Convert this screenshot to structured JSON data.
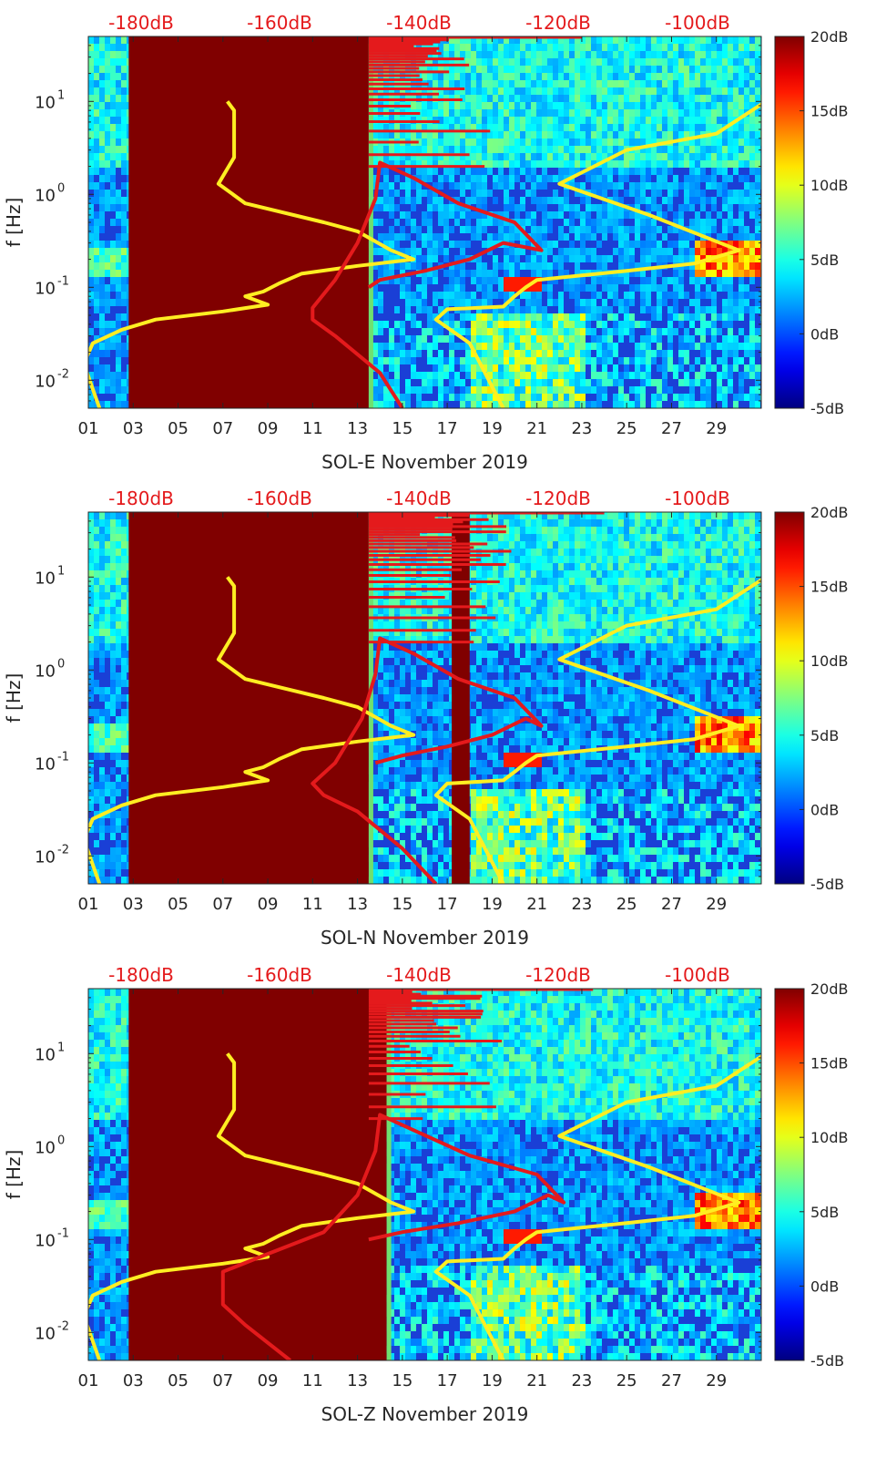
{
  "chart_data": [
    {
      "type": "heatmap",
      "xlabel": "SOL-E November 2019",
      "ylabel": "f [Hz]",
      "x_ticks": [
        "01",
        "03",
        "05",
        "07",
        "09",
        "11",
        "13",
        "15",
        "17",
        "19",
        "21",
        "23",
        "25",
        "27",
        "29"
      ],
      "x_range_days": [
        1,
        31
      ],
      "y_scale": "log",
      "y_ticks": [
        {
          "base": "10",
          "exp": "-2",
          "value": 0.01
        },
        {
          "base": "10",
          "exp": "-1",
          "value": 0.1
        },
        {
          "base": "10",
          "exp": "0",
          "value": 1
        },
        {
          "base": "10",
          "exp": "1",
          "value": 10
        }
      ],
      "y_range": [
        0.005,
        50
      ],
      "top_axis_labels": [
        "-180dB",
        "-160dB",
        "-140dB",
        "-120dB",
        "-100dB"
      ],
      "colorbar": {
        "ticks": [
          "-5dB",
          "0dB",
          "5dB",
          "10dB",
          "15dB",
          "20dB"
        ],
        "range": [
          -5,
          20
        ],
        "colormap": "jet"
      },
      "data_gap_days": [
        [
          2.8,
          13.5
        ]
      ],
      "series": [
        {
          "color": "#ffee22",
          "points": [
            [
              7.2,
              10
            ],
            [
              7.5,
              8
            ],
            [
              7.5,
              2.5
            ],
            [
              6.8,
              1.3
            ],
            [
              8.0,
              0.8
            ],
            [
              11.5,
              0.5
            ],
            [
              13.0,
              0.4
            ],
            [
              14.5,
              0.25
            ],
            [
              15.5,
              0.2
            ],
            [
              13.0,
              0.17
            ],
            [
              10.5,
              0.14
            ],
            [
              9.5,
              0.11
            ],
            [
              8.8,
              0.09
            ],
            [
              8.0,
              0.08
            ],
            [
              9.0,
              0.065
            ],
            [
              7.0,
              0.055
            ],
            [
              4.0,
              0.045
            ],
            [
              2.5,
              0.035
            ],
            [
              1.2,
              0.025
            ],
            [
              0.8,
              0.015
            ],
            [
              1.5,
              0.005
            ]
          ]
        },
        {
          "color": "#ffee22",
          "points": [
            [
              31.2,
              10
            ],
            [
              29.0,
              4.5
            ],
            [
              25.0,
              3.0
            ],
            [
              22.0,
              1.3
            ],
            [
              26.0,
              0.6
            ],
            [
              30.0,
              0.25
            ],
            [
              28.0,
              0.18
            ],
            [
              25.0,
              0.15
            ],
            [
              21.0,
              0.12
            ],
            [
              20.5,
              0.1
            ],
            [
              20.0,
              0.08
            ],
            [
              19.5,
              0.062
            ],
            [
              17.0,
              0.058
            ],
            [
              16.5,
              0.045
            ],
            [
              18.0,
              0.025
            ],
            [
              19.5,
              0.005
            ]
          ]
        },
        {
          "color": "#e41a1c",
          "points": [
            [
              13.5,
              0.1
            ],
            [
              14.0,
              0.12
            ],
            [
              16.0,
              0.15
            ],
            [
              18.0,
              0.2
            ],
            [
              19.5,
              0.3
            ],
            [
              21.2,
              0.25
            ],
            [
              20.0,
              0.5
            ],
            [
              17.5,
              0.8
            ],
            [
              15.5,
              1.5
            ],
            [
              14.0,
              2.2
            ],
            [
              13.8,
              0.9
            ],
            [
              13.0,
              0.3
            ],
            [
              12.0,
              0.12
            ],
            [
              11.0,
              0.06
            ],
            [
              11.0,
              0.045
            ],
            [
              12.0,
              0.03
            ],
            [
              14.0,
              0.012
            ],
            [
              15.0,
              0.005
            ]
          ]
        }
      ],
      "spikes": [
        {
          "days": 13.5,
          "upto": 19.0
        }
      ]
    },
    {
      "type": "heatmap",
      "xlabel": "SOL-N November 2019",
      "ylabel": "f [Hz]",
      "x_ticks": [
        "01",
        "03",
        "05",
        "07",
        "09",
        "11",
        "13",
        "15",
        "17",
        "19",
        "21",
        "23",
        "25",
        "27",
        "29"
      ],
      "x_range_days": [
        1,
        31
      ],
      "y_scale": "log",
      "y_ticks": [
        {
          "base": "10",
          "exp": "-2",
          "value": 0.01
        },
        {
          "base": "10",
          "exp": "-1",
          "value": 0.1
        },
        {
          "base": "10",
          "exp": "0",
          "value": 1
        },
        {
          "base": "10",
          "exp": "1",
          "value": 10
        }
      ],
      "y_range": [
        0.005,
        50
      ],
      "top_axis_labels": [
        "-180dB",
        "-160dB",
        "-140dB",
        "-120dB",
        "-100dB"
      ],
      "colorbar": {
        "ticks": [
          "-5dB",
          "0dB",
          "5dB",
          "10dB",
          "15dB",
          "20dB"
        ],
        "range": [
          -5,
          20
        ],
        "colormap": "jet"
      },
      "data_gap_days": [
        [
          2.8,
          13.5
        ],
        [
          17.2,
          18.0
        ]
      ],
      "series": [
        {
          "color": "#ffee22",
          "points": [
            [
              7.2,
              10
            ],
            [
              7.5,
              8
            ],
            [
              7.5,
              2.5
            ],
            [
              6.8,
              1.3
            ],
            [
              8.0,
              0.8
            ],
            [
              11.5,
              0.5
            ],
            [
              13.0,
              0.4
            ],
            [
              14.5,
              0.25
            ],
            [
              15.5,
              0.2
            ],
            [
              13.0,
              0.17
            ],
            [
              10.5,
              0.14
            ],
            [
              9.5,
              0.11
            ],
            [
              8.8,
              0.09
            ],
            [
              8.0,
              0.08
            ],
            [
              9.0,
              0.065
            ],
            [
              7.0,
              0.055
            ],
            [
              4.0,
              0.045
            ],
            [
              2.5,
              0.035
            ],
            [
              1.2,
              0.025
            ],
            [
              0.8,
              0.015
            ],
            [
              1.5,
              0.005
            ]
          ]
        },
        {
          "color": "#ffee22",
          "points": [
            [
              31.2,
              10
            ],
            [
              29.0,
              4.5
            ],
            [
              25.0,
              3.0
            ],
            [
              22.0,
              1.3
            ],
            [
              26.0,
              0.6
            ],
            [
              30.0,
              0.25
            ],
            [
              28.0,
              0.18
            ],
            [
              25.0,
              0.15
            ],
            [
              21.0,
              0.12
            ],
            [
              20.5,
              0.1
            ],
            [
              20.0,
              0.08
            ],
            [
              19.5,
              0.065
            ],
            [
              17.0,
              0.06
            ],
            [
              16.5,
              0.045
            ],
            [
              18.0,
              0.025
            ],
            [
              19.5,
              0.005
            ]
          ]
        },
        {
          "color": "#e41a1c",
          "points": [
            [
              13.8,
              0.1
            ],
            [
              15.0,
              0.12
            ],
            [
              17.0,
              0.15
            ],
            [
              19.0,
              0.2
            ],
            [
              20.5,
              0.3
            ],
            [
              21.2,
              0.25
            ],
            [
              20.0,
              0.5
            ],
            [
              17.5,
              0.8
            ],
            [
              15.5,
              1.5
            ],
            [
              14.0,
              2.2
            ],
            [
              13.8,
              0.9
            ],
            [
              13.2,
              0.3
            ],
            [
              12.0,
              0.1
            ],
            [
              11.0,
              0.06
            ],
            [
              11.5,
              0.045
            ],
            [
              13.0,
              0.03
            ],
            [
              15.0,
              0.012
            ],
            [
              16.5,
              0.005
            ]
          ]
        }
      ],
      "spikes": [
        {
          "days": 13.5,
          "upto": 20.0
        }
      ]
    },
    {
      "type": "heatmap",
      "xlabel": "SOL-Z November 2019",
      "ylabel": "f [Hz]",
      "x_ticks": [
        "01",
        "03",
        "05",
        "07",
        "09",
        "11",
        "13",
        "15",
        "17",
        "19",
        "21",
        "23",
        "25",
        "27",
        "29"
      ],
      "x_range_days": [
        1,
        31
      ],
      "y_scale": "log",
      "y_ticks": [
        {
          "base": "10",
          "exp": "-2",
          "value": 0.01
        },
        {
          "base": "10",
          "exp": "-1",
          "value": 0.1
        },
        {
          "base": "10",
          "exp": "0",
          "value": 1
        },
        {
          "base": "10",
          "exp": "1",
          "value": 10
        }
      ],
      "y_range": [
        0.005,
        50
      ],
      "top_axis_labels": [
        "-180dB",
        "-160dB",
        "-140dB",
        "-120dB",
        "-100dB"
      ],
      "colorbar": {
        "ticks": [
          "-5dB",
          "0dB",
          "5dB",
          "10dB",
          "15dB",
          "20dB"
        ],
        "range": [
          -5,
          20
        ],
        "colormap": "jet"
      },
      "data_gap_days": [
        [
          2.8,
          14.3
        ]
      ],
      "series": [
        {
          "color": "#ffee22",
          "points": [
            [
              7.2,
              10
            ],
            [
              7.5,
              8
            ],
            [
              7.5,
              2.5
            ],
            [
              6.8,
              1.3
            ],
            [
              8.0,
              0.8
            ],
            [
              11.5,
              0.5
            ],
            [
              13.0,
              0.4
            ],
            [
              14.5,
              0.25
            ],
            [
              15.5,
              0.2
            ],
            [
              13.0,
              0.17
            ],
            [
              10.5,
              0.14
            ],
            [
              9.5,
              0.11
            ],
            [
              8.8,
              0.09
            ],
            [
              8.0,
              0.08
            ],
            [
              9.0,
              0.065
            ],
            [
              7.0,
              0.055
            ],
            [
              4.0,
              0.045
            ],
            [
              2.5,
              0.035
            ],
            [
              1.2,
              0.025
            ],
            [
              0.8,
              0.015
            ],
            [
              1.5,
              0.005
            ]
          ]
        },
        {
          "color": "#ffee22",
          "points": [
            [
              31.2,
              10
            ],
            [
              29.0,
              4.5
            ],
            [
              25.0,
              3.0
            ],
            [
              22.0,
              1.3
            ],
            [
              26.0,
              0.6
            ],
            [
              30.0,
              0.25
            ],
            [
              28.0,
              0.18
            ],
            [
              25.0,
              0.15
            ],
            [
              21.0,
              0.12
            ],
            [
              20.5,
              0.1
            ],
            [
              20.0,
              0.08
            ],
            [
              19.5,
              0.062
            ],
            [
              17.0,
              0.058
            ],
            [
              16.5,
              0.045
            ],
            [
              18.0,
              0.025
            ],
            [
              19.5,
              0.005
            ]
          ]
        },
        {
          "color": "#e41a1c",
          "points": [
            [
              13.5,
              0.1
            ],
            [
              15.0,
              0.12
            ],
            [
              17.5,
              0.15
            ],
            [
              20.0,
              0.2
            ],
            [
              21.5,
              0.3
            ],
            [
              22.2,
              0.25
            ],
            [
              21.0,
              0.5
            ],
            [
              18.0,
              0.8
            ],
            [
              15.5,
              1.5
            ],
            [
              14.0,
              2.2
            ],
            [
              13.8,
              0.9
            ],
            [
              13.0,
              0.3
            ],
            [
              11.5,
              0.12
            ],
            [
              9.0,
              0.07
            ],
            [
              7.0,
              0.045
            ],
            [
              7.0,
              0.02
            ],
            [
              8.0,
              0.012
            ],
            [
              10.0,
              0.005
            ]
          ]
        }
      ],
      "spikes": [
        {
          "days": 13.5,
          "upto": 19.5
        }
      ]
    }
  ]
}
